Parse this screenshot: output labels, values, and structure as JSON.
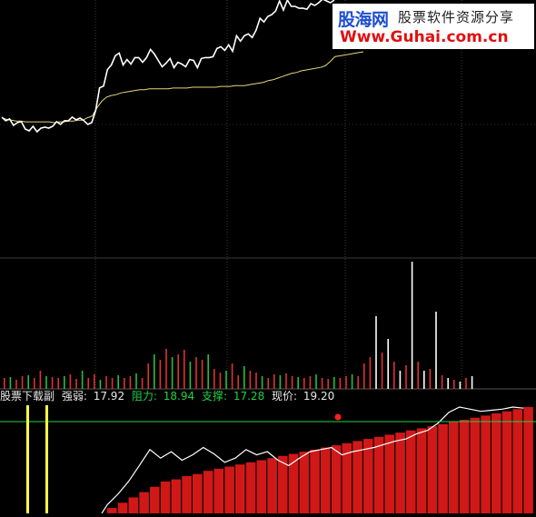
{
  "watermark": {
    "logo": "股海网",
    "slogan": "股票软件资源分享",
    "url": "Www.Guhai.com.cn"
  },
  "indicator": {
    "name": "股票下载副",
    "strength_label": "强弱:",
    "strength_value": "17.92",
    "resistance_label": "阻力:",
    "resistance_value": "18.94",
    "support_label": "支撑:",
    "support_value": "17.28",
    "price_label": "现价:",
    "price_value": "19.20"
  },
  "colors": {
    "price_line": "#ffffff",
    "avg_line": "#e6d77a",
    "volume_up": "#e03030",
    "volume_down": "#22c040",
    "volume_flat": "#ffffff",
    "strength_bar": "#d01818",
    "support_line": "#22d046",
    "marker_lines": "#ffff40"
  },
  "chart_data": {
    "type": "line",
    "price": [
      127,
      131,
      129,
      136,
      133,
      132,
      140,
      142,
      137,
      143,
      139,
      138,
      139,
      137,
      132,
      135,
      131,
      131,
      127,
      130,
      128,
      131,
      135,
      133,
      120,
      95,
      93,
      75,
      70,
      60,
      57,
      70,
      64,
      69,
      62,
      62,
      67,
      62,
      53,
      58,
      65,
      72,
      68,
      63,
      73,
      67,
      69,
      72,
      64,
      65,
      73,
      63,
      62,
      62,
      61,
      52,
      50,
      54,
      48,
      55,
      38,
      44,
      38,
      36,
      40,
      32,
      19,
      23,
      17,
      15,
      11,
      0,
      10,
      -1,
      6,
      6,
      8,
      8,
      9,
      3,
      5,
      2,
      -2,
      0,
      2,
      -1
    ],
    "avg": [
      130,
      132,
      133,
      134,
      134,
      135,
      135,
      135,
      135,
      135,
      135,
      136,
      135,
      135,
      134,
      134,
      133,
      133,
      130,
      128,
      118,
      110,
      105,
      103,
      102,
      100,
      99,
      98,
      97,
      96,
      96,
      95,
      95,
      95,
      95,
      95,
      94,
      94,
      94,
      94,
      93,
      93,
      93,
      93,
      93,
      93,
      92,
      92,
      92,
      91,
      91,
      91,
      90,
      89,
      88,
      87,
      85,
      84,
      82,
      80,
      78,
      76,
      75,
      73,
      72,
      71,
      70,
      69,
      67,
      62,
      56,
      55,
      54,
      53,
      52,
      51,
      50
    ],
    "volume": [
      12,
      13,
      10,
      14,
      15,
      12,
      20,
      14,
      13,
      12,
      14,
      16,
      11,
      20,
      12,
      16,
      10,
      14,
      12,
      15,
      12,
      14,
      17,
      12,
      28,
      38,
      32,
      44,
      35,
      38,
      43,
      30,
      35,
      32,
      38,
      22,
      18,
      20,
      28,
      15,
      25,
      20,
      18,
      14,
      12,
      16,
      15,
      17,
      14,
      13,
      12,
      14,
      16,
      12,
      11,
      13,
      12,
      14,
      16,
      14,
      28,
      35,
      30,
      22,
      18,
      30,
      20,
      26,
      40,
      30,
      20,
      22,
      25,
      15,
      12,
      10,
      8,
      12,
      14
    ],
    "strength_bars": [
      0,
      0,
      0,
      0,
      0,
      0,
      0,
      0,
      0,
      0,
      0,
      0,
      0,
      0,
      0,
      0,
      0,
      0,
      0,
      0,
      0,
      0,
      0,
      0,
      0,
      0,
      0,
      0,
      0,
      0,
      0,
      0,
      0,
      0,
      0,
      0,
      0,
      0,
      0,
      0,
      0,
      5,
      10,
      15,
      20,
      25,
      30,
      32,
      35,
      37,
      40,
      42,
      44,
      46,
      48,
      50,
      52,
      54,
      56,
      58,
      60,
      62,
      64,
      66,
      68,
      70,
      72,
      74,
      76,
      78,
      80,
      82,
      84,
      86,
      88,
      90,
      92,
      94,
      96,
      98,
      100
    ],
    "strength_line": [
      0,
      0,
      0,
      0,
      0,
      0,
      0,
      0,
      0,
      0,
      0,
      0,
      0,
      0,
      0,
      0,
      0,
      0,
      0,
      0,
      0,
      0,
      0,
      0,
      0,
      0,
      0,
      0,
      0,
      0,
      0,
      0,
      0,
      0,
      0,
      0,
      0,
      0,
      0,
      0,
      0,
      8,
      18,
      30,
      45,
      60,
      52,
      58,
      50,
      55,
      62,
      56,
      48,
      52,
      60,
      55,
      58,
      50,
      45,
      52,
      58,
      60,
      62,
      55,
      58,
      60,
      62,
      65,
      68,
      70,
      75,
      78,
      85,
      95,
      100,
      98,
      96,
      97,
      98,
      100,
      99
    ]
  }
}
